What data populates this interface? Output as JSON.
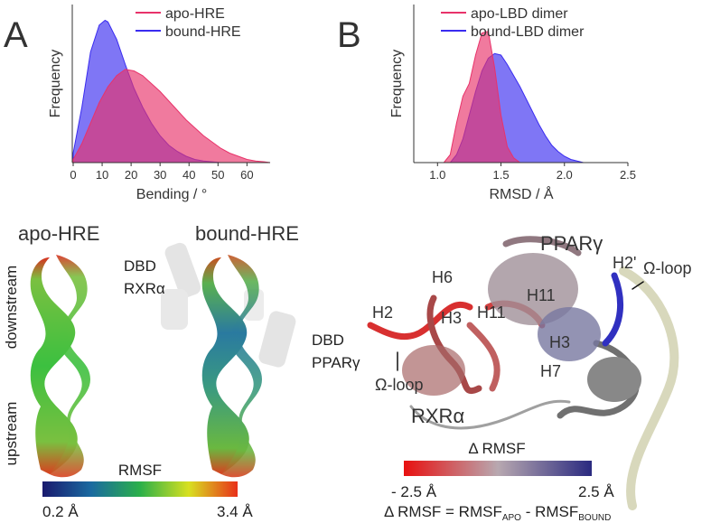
{
  "panel_labels": [
    "A",
    "B"
  ],
  "chart_data": [
    {
      "type": "area",
      "y_label": "Frequency",
      "x_label": "Bending / °",
      "xlim": [
        0,
        68
      ],
      "xticks": [
        0,
        10,
        20,
        30,
        40,
        50,
        60
      ],
      "ylim": [
        0,
        1
      ],
      "legend": "upper right",
      "series": [
        {
          "name": "apo-HRE",
          "color": "#e8336a",
          "x": [
            0,
            3,
            6,
            9,
            12,
            15,
            18,
            21,
            24,
            27,
            30,
            33,
            36,
            39,
            42,
            45,
            48,
            51,
            54,
            57,
            60,
            63,
            66,
            68
          ],
          "values": [
            0.02,
            0.12,
            0.25,
            0.38,
            0.48,
            0.55,
            0.59,
            0.58,
            0.55,
            0.5,
            0.45,
            0.39,
            0.33,
            0.27,
            0.22,
            0.17,
            0.13,
            0.09,
            0.06,
            0.04,
            0.02,
            0.01,
            0.005,
            0
          ]
        },
        {
          "name": "bound-HRE",
          "color": "#3a2cf0",
          "x": [
            0,
            3,
            6,
            9,
            11,
            12,
            15,
            18,
            21,
            24,
            27,
            30,
            33,
            36,
            39,
            42,
            45,
            48,
            51
          ],
          "values": [
            0.06,
            0.35,
            0.7,
            0.87,
            0.9,
            0.89,
            0.78,
            0.62,
            0.47,
            0.35,
            0.25,
            0.17,
            0.11,
            0.07,
            0.04,
            0.02,
            0.01,
            0.005,
            0
          ]
        }
      ]
    },
    {
      "type": "area",
      "y_label": "Frequency",
      "x_label": "RMSD / Å",
      "xlim": [
        0.82,
        2.5
      ],
      "xticks": [
        {
          "value": 1,
          "label": "1.0"
        },
        1.5,
        {
          "value": 2,
          "label": "2.0"
        },
        2.5
      ],
      "ylim": [
        0,
        1
      ],
      "legend": "upper right",
      "series": [
        {
          "name": "apo-LBD dimer",
          "color": "#e8336a",
          "x": [
            1.05,
            1.1,
            1.15,
            1.2,
            1.25,
            1.3,
            1.35,
            1.4,
            1.45,
            1.5,
            1.55,
            1.6,
            1.65
          ],
          "values": [
            0,
            0.05,
            0.25,
            0.42,
            0.5,
            0.68,
            0.82,
            0.83,
            0.6,
            0.3,
            0.1,
            0.03,
            0
          ]
        },
        {
          "name": "bound-LBD dimer",
          "color": "#3a2cf0",
          "x": [
            1.1,
            1.15,
            1.2,
            1.25,
            1.3,
            1.35,
            1.4,
            1.45,
            1.5,
            1.55,
            1.6,
            1.65,
            1.7,
            1.75,
            1.8,
            1.85,
            1.9,
            1.95,
            2.0,
            2.05,
            2.1,
            2.15
          ],
          "values": [
            0,
            0.05,
            0.15,
            0.3,
            0.45,
            0.58,
            0.66,
            0.69,
            0.68,
            0.62,
            0.55,
            0.48,
            0.4,
            0.32,
            0.24,
            0.17,
            0.11,
            0.07,
            0.04,
            0.02,
            0.01,
            0
          ]
        }
      ]
    }
  ],
  "hre": {
    "titles": [
      "apo-HRE",
      "bound-HRE"
    ],
    "dbd_labels": [
      [
        "DBD",
        "RXRα"
      ],
      [
        "DBD",
        "PPARγ"
      ]
    ],
    "axis": [
      "downstream",
      "upstream"
    ],
    "colorbar": {
      "title": "RMSF",
      "min": "0.2 Å",
      "max": "3.4 Å"
    }
  },
  "lbd": {
    "labels": [
      "PPARγ",
      "H2'",
      "Ω-loop",
      "H6",
      "H2",
      "H3",
      "H11",
      "H11",
      "H3",
      "H7",
      "Ω-loop",
      "RXRα"
    ],
    "colorbar": {
      "title": "Δ RMSF",
      "min": "- 2.5 Å",
      "max": "2.5 Å"
    },
    "formula": [
      "Δ RMSF = RMSF",
      "APO",
      " - RMSF",
      "BOUND"
    ]
  }
}
